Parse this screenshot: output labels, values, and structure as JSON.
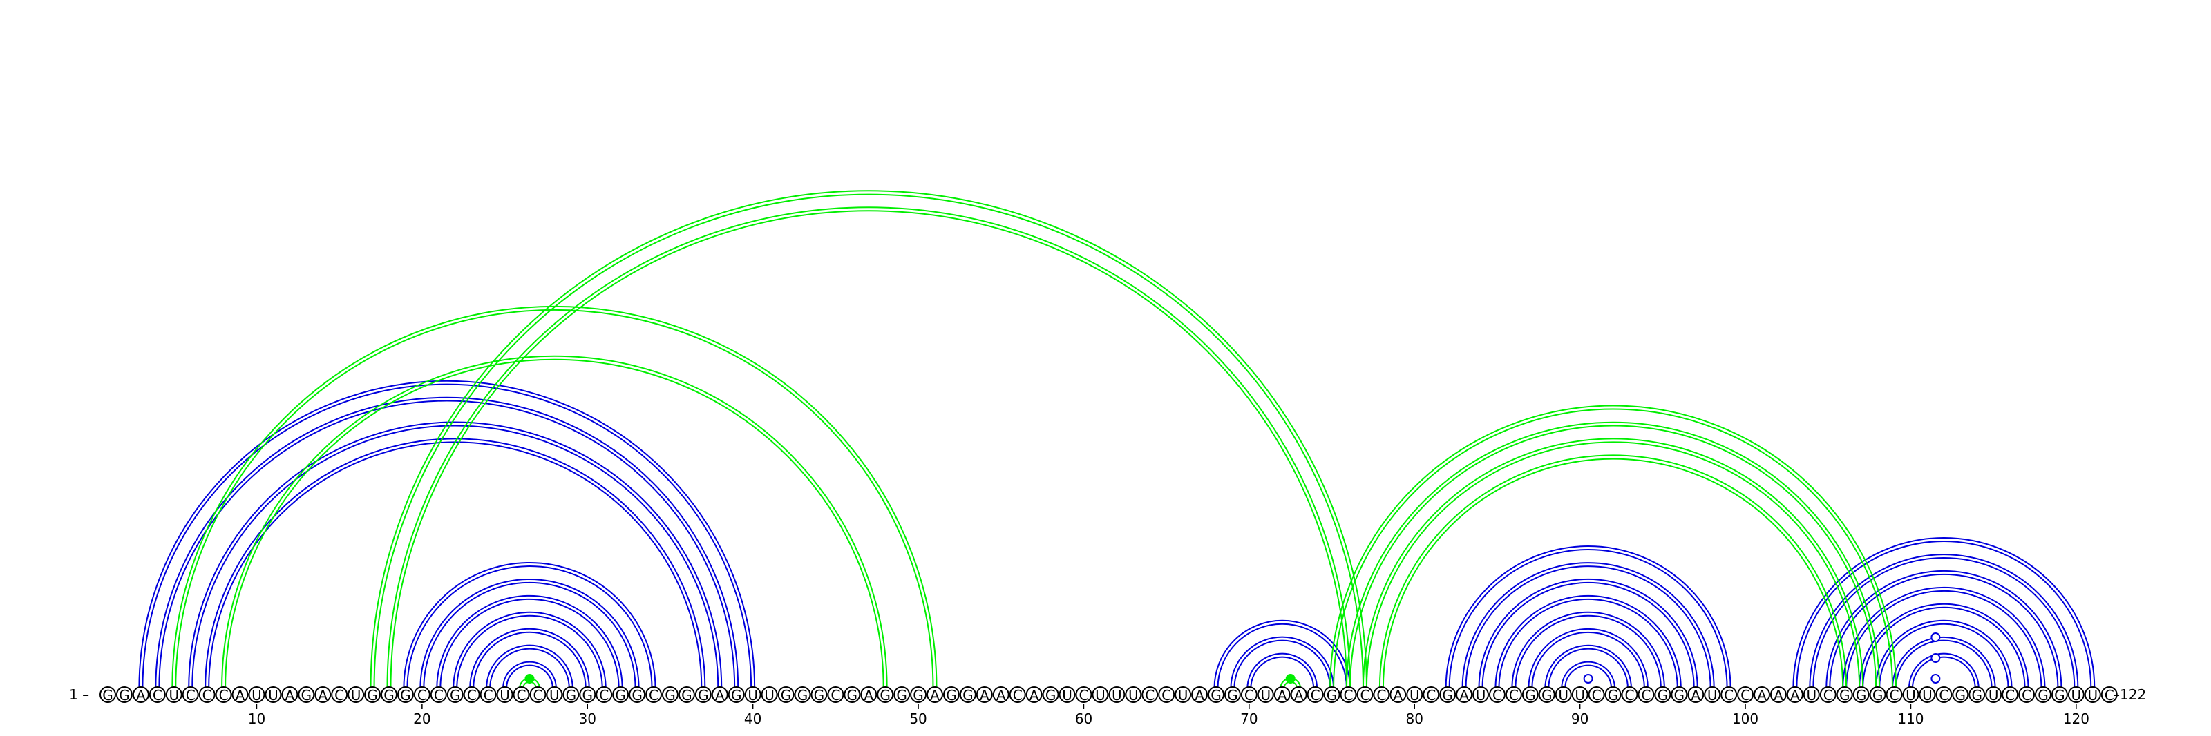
{
  "sequence": "GGACUCCCAUUAGACUGGGCCGCCUCCUGGCGGCGGGAGUUGGGCGAGGGAGGAACAGUCUUUCCUAGGCUAACGCCCAUCGAUCCGGUUCGCCGGAUCCAAAUCGGGCUUCGGUCCGGUUC",
  "labels": {
    "start": "1 –",
    "end": "–122"
  },
  "ticks": [
    10,
    20,
    30,
    40,
    50,
    60,
    70,
    80,
    90,
    100,
    110,
    120
  ],
  "colors": {
    "blue": "#0000dd",
    "green": "#00ee00"
  },
  "blue_pairs": [
    [
      3,
      40
    ],
    [
      4,
      39
    ],
    [
      6,
      38
    ],
    [
      7,
      37
    ],
    [
      19,
      34
    ],
    [
      20,
      33
    ],
    [
      21,
      32
    ],
    [
      22,
      31
    ],
    [
      23,
      30
    ],
    [
      24,
      29
    ],
    [
      25,
      28
    ],
    [
      68,
      76
    ],
    [
      69,
      75
    ],
    [
      70,
      74
    ],
    [
      82,
      99
    ],
    [
      83,
      98
    ],
    [
      84,
      97
    ],
    [
      85,
      96
    ],
    [
      86,
      95
    ],
    [
      87,
      94
    ],
    [
      88,
      93
    ],
    [
      89,
      92
    ],
    [
      103,
      121
    ],
    [
      104,
      120
    ],
    [
      105,
      119
    ],
    [
      106,
      118
    ],
    [
      107,
      117
    ],
    [
      108,
      116
    ],
    [
      109,
      115
    ],
    [
      110,
      114
    ]
  ],
  "green_pairs": [
    [
      5,
      51
    ],
    [
      8,
      48
    ],
    [
      17,
      77
    ],
    [
      18,
      76
    ],
    [
      75,
      109
    ],
    [
      76,
      108
    ],
    [
      77,
      107
    ],
    [
      78,
      106
    ],
    [
      26,
      27
    ],
    [
      72,
      73
    ]
  ],
  "special_dots": [
    {
      "pos": 26.5,
      "h": 0,
      "color": "green",
      "filled": true
    },
    {
      "pos": 72.5,
      "h": 0,
      "color": "green",
      "filled": true
    },
    {
      "pos": 90.5,
      "h": 0,
      "color": "blue",
      "filled": false
    },
    {
      "pos": 111.5,
      "h": 0,
      "color": "blue",
      "filled": false
    },
    {
      "pos": 111.5,
      "h": 1,
      "color": "blue",
      "filled": false
    },
    {
      "pos": 111.5,
      "h": 2,
      "color": "blue",
      "filled": false
    }
  ]
}
